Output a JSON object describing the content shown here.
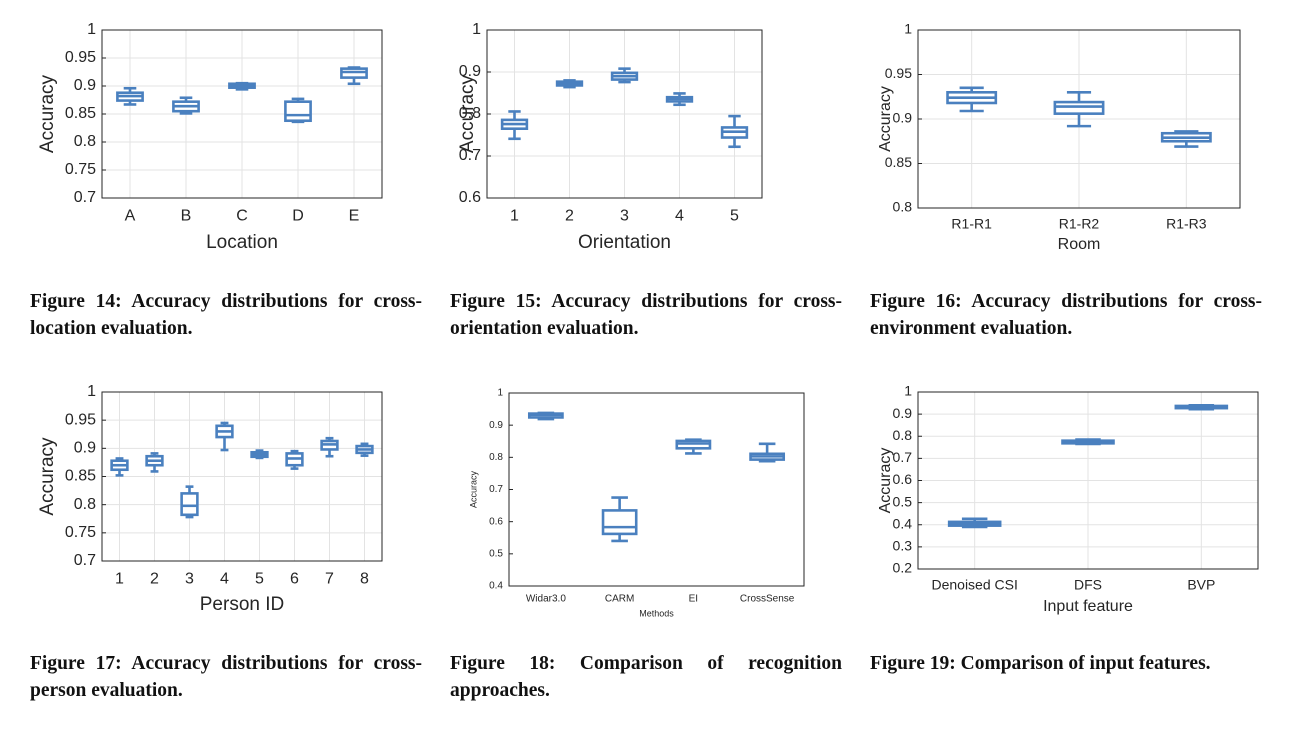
{
  "chart_data": [
    {
      "type": "box",
      "xlabel": "Location",
      "ylabel": "Accuracy",
      "color": "#4a80bf",
      "grid": true,
      "categories": [
        "A",
        "B",
        "C",
        "D",
        "E"
      ],
      "boxes": [
        {
          "min": 0.867,
          "q1": 0.874,
          "median": 0.882,
          "q3": 0.888,
          "max": 0.896
        },
        {
          "min": 0.851,
          "q1": 0.855,
          "median": 0.864,
          "q3": 0.872,
          "max": 0.879
        },
        {
          "min": 0.894,
          "q1": 0.897,
          "median": 0.9,
          "q3": 0.904,
          "max": 0.905
        },
        {
          "min": 0.836,
          "q1": 0.838,
          "median": 0.848,
          "q3": 0.872,
          "max": 0.877
        },
        {
          "min": 0.904,
          "q1": 0.915,
          "median": 0.925,
          "q3": 0.931,
          "max": 0.933
        }
      ],
      "ylim": [
        0.7,
        1
      ],
      "yticks": [
        0.7,
        0.75,
        0.8,
        0.85,
        0.9,
        0.95,
        1
      ],
      "caption": "Figure 14: Accuracy distributions for cross-location evaluation."
    },
    {
      "type": "box",
      "xlabel": "Orientation",
      "ylabel": "Accuracy",
      "color": "#4a80bf",
      "grid": true,
      "categories": [
        "1",
        "2",
        "3",
        "4",
        "5"
      ],
      "boxes": [
        {
          "min": 0.741,
          "q1": 0.765,
          "median": 0.776,
          "q3": 0.786,
          "max": 0.806
        },
        {
          "min": 0.864,
          "q1": 0.868,
          "median": 0.873,
          "q3": 0.877,
          "max": 0.88
        },
        {
          "min": 0.876,
          "q1": 0.882,
          "median": 0.89,
          "q3": 0.898,
          "max": 0.908
        },
        {
          "min": 0.822,
          "q1": 0.83,
          "median": 0.836,
          "q3": 0.84,
          "max": 0.849
        },
        {
          "min": 0.722,
          "q1": 0.744,
          "median": 0.758,
          "q3": 0.768,
          "max": 0.795
        }
      ],
      "ylim": [
        0.6,
        1
      ],
      "yticks": [
        0.6,
        0.7,
        0.8,
        0.9,
        1
      ],
      "caption": "Figure 15: Accuracy distributions for cross-orientation evaluation."
    },
    {
      "type": "box",
      "xlabel": "Room",
      "ylabel": "Accuracy",
      "color": "#4a80bf",
      "grid": true,
      "categories": [
        "R1-R1",
        "R1-R2",
        "R1-R3"
      ],
      "boxes": [
        {
          "min": 0.909,
          "q1": 0.918,
          "median": 0.924,
          "q3": 0.93,
          "max": 0.935
        },
        {
          "min": 0.892,
          "q1": 0.906,
          "median": 0.914,
          "q3": 0.919,
          "max": 0.93
        },
        {
          "min": 0.869,
          "q1": 0.875,
          "median": 0.879,
          "q3": 0.884,
          "max": 0.886
        }
      ],
      "ylim": [
        0.8,
        1
      ],
      "yticks": [
        0.8,
        0.85,
        0.9,
        0.95,
        1
      ],
      "caption": "Figure 16: Accuracy distributions for cross-environment evaluation."
    },
    {
      "type": "box",
      "xlabel": "Person ID",
      "ylabel": "Accuracy",
      "color": "#4a80bf",
      "grid": true,
      "categories": [
        "1",
        "2",
        "3",
        "4",
        "5",
        "6",
        "7",
        "8"
      ],
      "boxes": [
        {
          "min": 0.852,
          "q1": 0.862,
          "median": 0.87,
          "q3": 0.878,
          "max": 0.882
        },
        {
          "min": 0.859,
          "q1": 0.87,
          "median": 0.878,
          "q3": 0.886,
          "max": 0.891
        },
        {
          "min": 0.778,
          "q1": 0.782,
          "median": 0.798,
          "q3": 0.82,
          "max": 0.832
        },
        {
          "min": 0.897,
          "q1": 0.92,
          "median": 0.93,
          "q3": 0.94,
          "max": 0.945
        },
        {
          "min": 0.883,
          "q1": 0.885,
          "median": 0.889,
          "q3": 0.893,
          "max": 0.896
        },
        {
          "min": 0.864,
          "q1": 0.87,
          "median": 0.882,
          "q3": 0.891,
          "max": 0.895
        },
        {
          "min": 0.886,
          "q1": 0.898,
          "median": 0.907,
          "q3": 0.913,
          "max": 0.918
        },
        {
          "min": 0.887,
          "q1": 0.892,
          "median": 0.898,
          "q3": 0.904,
          "max": 0.908
        }
      ],
      "ylim": [
        0.7,
        1
      ],
      "yticks": [
        0.7,
        0.75,
        0.8,
        0.85,
        0.9,
        0.95,
        1
      ],
      "caption": "Figure 17: Accuracy distributions for cross-person evaluation."
    },
    {
      "type": "box",
      "xlabel": "Methods",
      "ylabel": "Accuracy",
      "color": "#4a80bf",
      "grid": false,
      "categories": [
        "Widar3.0",
        "CARM",
        "EI",
        "CrossSense"
      ],
      "boxes": [
        {
          "min": 0.919,
          "q1": 0.924,
          "median": 0.932,
          "q3": 0.936,
          "max": 0.938
        },
        {
          "min": 0.54,
          "q1": 0.562,
          "median": 0.583,
          "q3": 0.635,
          "max": 0.675
        },
        {
          "min": 0.812,
          "q1": 0.828,
          "median": 0.843,
          "q3": 0.851,
          "max": 0.855
        },
        {
          "min": 0.788,
          "q1": 0.793,
          "median": 0.803,
          "q3": 0.811,
          "max": 0.842
        }
      ],
      "ylim": [
        0.4,
        1
      ],
      "yticks": [
        0.4,
        0.5,
        0.6,
        0.7,
        0.8,
        0.9,
        1
      ],
      "caption": "Figure 18: Comparison of recognition approaches."
    },
    {
      "type": "box",
      "xlabel": "Input feature",
      "ylabel": "Accuracy",
      "color": "#4a80bf",
      "grid": true,
      "categories": [
        "Denoised CSI",
        "DFS",
        "BVP"
      ],
      "boxes": [
        {
          "min": 0.39,
          "q1": 0.396,
          "median": 0.405,
          "q3": 0.413,
          "max": 0.427
        },
        {
          "min": 0.765,
          "q1": 0.768,
          "median": 0.773,
          "q3": 0.78,
          "max": 0.785
        },
        {
          "min": 0.922,
          "q1": 0.927,
          "median": 0.932,
          "q3": 0.937,
          "max": 0.94
        }
      ],
      "ylim": [
        0.2,
        1
      ],
      "yticks": [
        0.2,
        0.3,
        0.4,
        0.5,
        0.6,
        0.7,
        0.8,
        0.9,
        1
      ],
      "caption": "Figure 19: Comparison of input features."
    }
  ]
}
